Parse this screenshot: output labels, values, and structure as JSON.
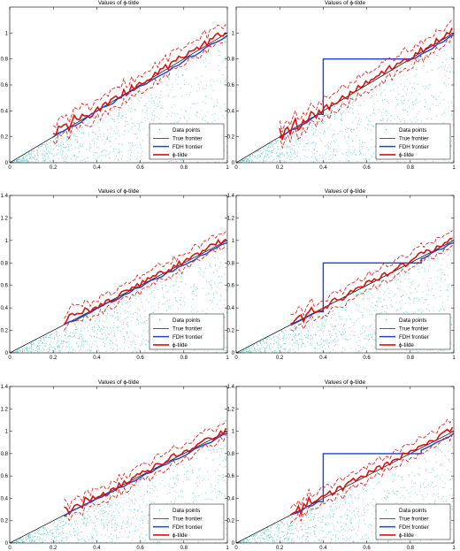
{
  "chart_data": [
    {
      "type": "scatter",
      "title": "Values of ϕ-tilde",
      "xlim": [
        0,
        1
      ],
      "ylim": [
        0,
        1.2
      ],
      "xticks": [
        "0",
        "0.2",
        "0.4",
        "0.6",
        "0.8",
        "1"
      ],
      "yticks": [
        "0",
        "0.2",
        "0.4",
        "0.6",
        "0.8",
        "1"
      ],
      "legend": [
        "Data points",
        "True frontier",
        "FDH frontier",
        "ϕ-tilde"
      ],
      "legend_position": "bottom-right",
      "fdh_jump": null,
      "series_start": 0.2
    },
    {
      "type": "scatter",
      "title": "Values of ϕ-tilde",
      "xlim": [
        0,
        1
      ],
      "ylim": [
        0,
        1.2
      ],
      "xticks": [
        "0",
        "0.2",
        "0.4",
        "0.6",
        "0.8",
        "1"
      ],
      "yticks": [
        "0",
        "0.2",
        "0.4",
        "0.6",
        "0.8",
        "1"
      ],
      "legend": [
        "Data points",
        "True frontier",
        "FDH frontier",
        "ϕ-tilde"
      ],
      "legend_position": "bottom-right",
      "fdh_jump": {
        "x": 0.4,
        "y": 0.8,
        "until": 0.8
      },
      "series_start": 0.2
    },
    {
      "type": "scatter",
      "title": "Values of ϕ-tilde",
      "xlim": [
        0,
        1
      ],
      "ylim": [
        0,
        1.4
      ],
      "xticks": [
        "0",
        "0.2",
        "0.4",
        "0.6",
        "0.8",
        "1"
      ],
      "yticks": [
        "0",
        "0.2",
        "0.4",
        "0.6",
        "0.8",
        "1",
        "1.2",
        "1.4"
      ],
      "legend": [
        "Data points",
        "True frontier",
        "FDH frontier",
        "ϕ-tilde"
      ],
      "legend_position": "bottom-right",
      "fdh_jump": null,
      "series_start": 0.25
    },
    {
      "type": "scatter",
      "title": "Values of ϕ-tilde",
      "xlim": [
        0,
        1
      ],
      "ylim": [
        0,
        1.4
      ],
      "xticks": [
        "0",
        "0.2",
        "0.4",
        "0.6",
        "0.8",
        "1"
      ],
      "yticks": [
        "0",
        "0.2",
        "0.4",
        "0.6",
        "0.8",
        "1",
        "1.2",
        "1.4"
      ],
      "legend": [
        "Data points",
        "True frontier",
        "FDH frontier",
        "ϕ-tilde"
      ],
      "legend_position": "bottom-right",
      "fdh_jump": {
        "x": 0.4,
        "y": 0.8,
        "until": 0.85
      },
      "series_start": 0.25
    },
    {
      "type": "scatter",
      "title": "Values of ϕ-tilde",
      "xlim": [
        0,
        1
      ],
      "ylim": [
        0,
        1.4
      ],
      "xticks": [
        "0",
        "0.2",
        "0.4",
        "0.6",
        "0.8",
        "1"
      ],
      "yticks": [
        "0",
        "0.2",
        "0.4",
        "0.6",
        "0.8",
        "1",
        "1.2",
        "1.4"
      ],
      "legend": [
        "Data points",
        "True frontier",
        "FDH frontier",
        "ϕ-tilde"
      ],
      "legend_position": "bottom-right",
      "fdh_jump": null,
      "series_start": 0.25
    },
    {
      "type": "scatter",
      "title": "Values of ϕ-tilde",
      "xlim": [
        0,
        1
      ],
      "ylim": [
        0,
        1.4
      ],
      "xticks": [
        "0",
        "0.2",
        "0.4",
        "0.6",
        "0.8",
        "1"
      ],
      "yticks": [
        "0",
        "0.2",
        "0.4",
        "0.6",
        "0.8",
        "1",
        "1.2",
        "1.4"
      ],
      "legend": [
        "Data points",
        "True frontier",
        "FDH frontier",
        "ϕ-tilde"
      ],
      "legend_position": "bottom-right",
      "fdh_jump": {
        "x": 0.4,
        "y": 0.8,
        "until": 0.85
      },
      "series_start": 0.25
    }
  ],
  "colors": {
    "data_points": "#66cccc",
    "true_frontier": "#000000",
    "fdh_frontier": "#1f3fd6",
    "phi_tilde": "#dd1111"
  }
}
